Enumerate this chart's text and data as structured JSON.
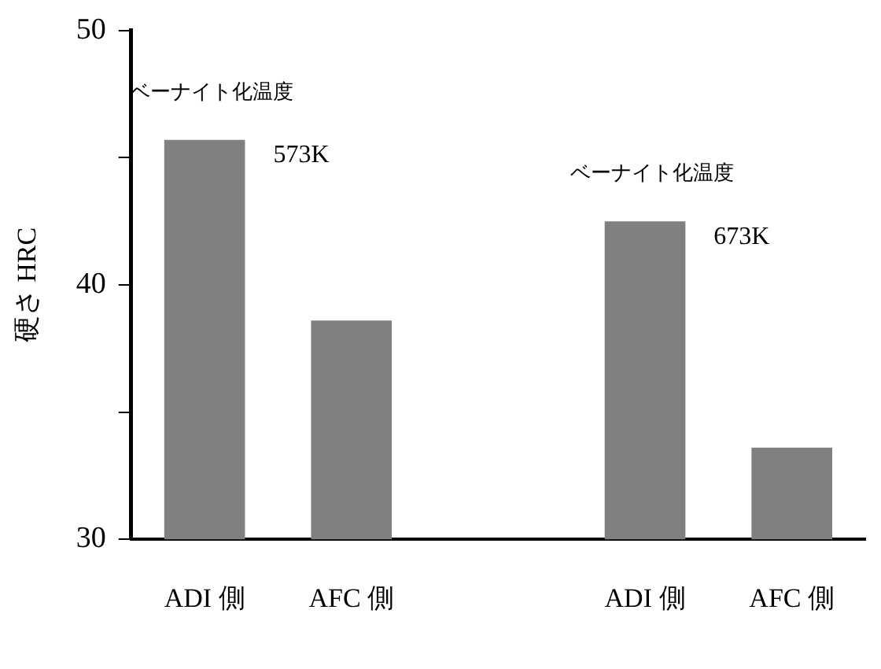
{
  "chart_data": {
    "type": "bar",
    "ylabel": "硬さ HRC",
    "categories": [
      "ADI 側",
      "AFC 側",
      null,
      "ADI 側",
      "AFC 側"
    ],
    "values": [
      45.7,
      38.6,
      null,
      42.5,
      33.6
    ],
    "color": "#808080",
    "ylim": [
      30,
      50
    ],
    "yticks": [
      30,
      {
        "value": 35,
        "label": null
      },
      40,
      {
        "value": 45,
        "label": null
      },
      50
    ],
    "annotations": [
      "ベーナイト化温度",
      "573K",
      "ベーナイト化温度",
      "673K"
    ],
    "grid": false,
    "legend": false
  }
}
